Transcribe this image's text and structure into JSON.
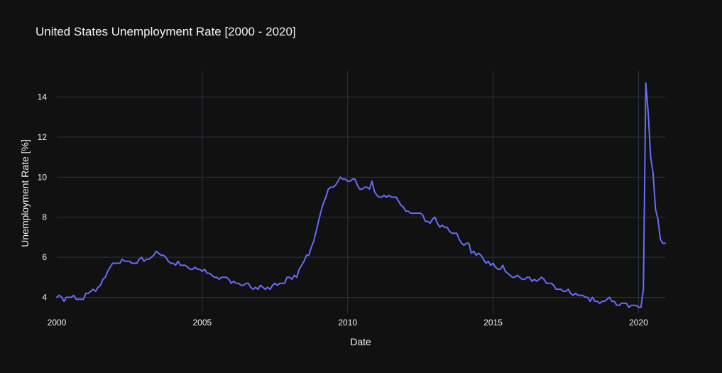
{
  "chart_data": {
    "type": "line",
    "title": "United States Unemployment Rate [2000 - 2020]",
    "xlabel": "Date",
    "ylabel": "Unemployment Rate [%]",
    "xlim": [
      "2000-01",
      "2020-12"
    ],
    "ylim": [
      3.2,
      15.3
    ],
    "xticks": [
      "2000",
      "2005",
      "2010",
      "2015",
      "2020"
    ],
    "yticks": [
      4,
      6,
      8,
      10,
      12,
      14
    ],
    "grid": true,
    "colors": {
      "background": "#111111",
      "grid": "#283442",
      "line": "#636efa",
      "text": "#f2f2f2"
    },
    "series": [
      {
        "start": "2000-01",
        "frequency": "monthly",
        "values": [
          4.0,
          4.1,
          4.0,
          3.8,
          4.0,
          4.0,
          4.0,
          4.1,
          3.9,
          3.9,
          3.9,
          3.9,
          4.2,
          4.2,
          4.3,
          4.4,
          4.3,
          4.5,
          4.6,
          4.9,
          5.0,
          5.3,
          5.5,
          5.7,
          5.7,
          5.7,
          5.7,
          5.9,
          5.8,
          5.8,
          5.8,
          5.7,
          5.7,
          5.7,
          5.9,
          6.0,
          5.8,
          5.9,
          5.9,
          6.0,
          6.1,
          6.3,
          6.2,
          6.1,
          6.1,
          6.0,
          5.8,
          5.7,
          5.7,
          5.6,
          5.8,
          5.6,
          5.6,
          5.6,
          5.5,
          5.4,
          5.4,
          5.5,
          5.4,
          5.4,
          5.3,
          5.4,
          5.2,
          5.2,
          5.1,
          5.0,
          5.0,
          4.9,
          5.0,
          5.0,
          5.0,
          4.9,
          4.7,
          4.8,
          4.7,
          4.7,
          4.6,
          4.6,
          4.7,
          4.7,
          4.5,
          4.4,
          4.5,
          4.4,
          4.6,
          4.5,
          4.4,
          4.5,
          4.4,
          4.6,
          4.7,
          4.6,
          4.7,
          4.7,
          4.7,
          5.0,
          5.0,
          4.9,
          5.1,
          5.0,
          5.4,
          5.6,
          5.8,
          6.1,
          6.1,
          6.5,
          6.8,
          7.3,
          7.8,
          8.3,
          8.7,
          9.0,
          9.4,
          9.5,
          9.5,
          9.6,
          9.8,
          10.0,
          9.9,
          9.9,
          9.8,
          9.8,
          9.9,
          9.9,
          9.6,
          9.4,
          9.4,
          9.5,
          9.5,
          9.4,
          9.8,
          9.3,
          9.1,
          9.0,
          9.0,
          9.1,
          9.0,
          9.1,
          9.0,
          9.0,
          9.0,
          8.8,
          8.6,
          8.5,
          8.3,
          8.3,
          8.2,
          8.2,
          8.2,
          8.2,
          8.2,
          8.1,
          7.8,
          7.8,
          7.7,
          7.9,
          8.0,
          7.7,
          7.5,
          7.6,
          7.5,
          7.5,
          7.3,
          7.2,
          7.2,
          7.2,
          6.9,
          6.7,
          6.6,
          6.7,
          6.7,
          6.2,
          6.3,
          6.1,
          6.2,
          6.1,
          5.9,
          5.7,
          5.8,
          5.6,
          5.7,
          5.5,
          5.4,
          5.4,
          5.6,
          5.3,
          5.2,
          5.1,
          5.0,
          5.0,
          5.1,
          5.0,
          4.9,
          4.9,
          5.0,
          5.0,
          4.8,
          4.9,
          4.8,
          4.9,
          5.0,
          4.9,
          4.7,
          4.7,
          4.7,
          4.6,
          4.4,
          4.4,
          4.4,
          4.3,
          4.3,
          4.4,
          4.2,
          4.1,
          4.2,
          4.1,
          4.1,
          4.1,
          4.0,
          4.0,
          3.8,
          4.0,
          3.8,
          3.8,
          3.7,
          3.8,
          3.8,
          3.9,
          4.0,
          3.8,
          3.8,
          3.6,
          3.6,
          3.7,
          3.7,
          3.7,
          3.5,
          3.6,
          3.6,
          3.6,
          3.5,
          3.5,
          4.4,
          14.7,
          13.2,
          11.0,
          10.2,
          8.4,
          7.9,
          6.9,
          6.7,
          6.7
        ]
      }
    ]
  }
}
